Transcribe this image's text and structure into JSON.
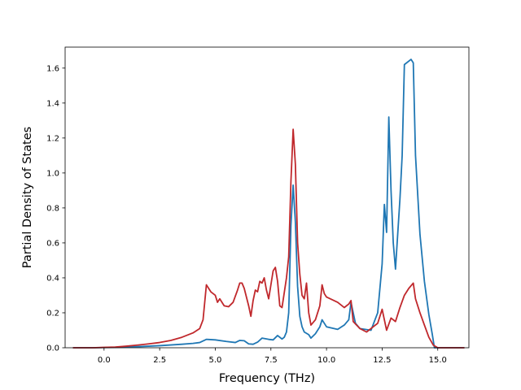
{
  "chart_data": {
    "type": "line",
    "title": "",
    "xlabel": "Frequency (THz)",
    "ylabel": "Partial Density of States",
    "xlim": [
      -1.75,
      16.4
    ],
    "ylim": [
      0,
      1.72
    ],
    "xticks": [
      0.0,
      2.5,
      5.0,
      7.5,
      10.0,
      12.5,
      15.0
    ],
    "xtick_labels": [
      "0.0",
      "2.5",
      "5.0",
      "7.5",
      "10.0",
      "12.5",
      "15.0"
    ],
    "yticks": [
      0.0,
      0.2,
      0.4,
      0.6,
      0.8,
      1.0,
      1.2,
      1.4,
      1.6
    ],
    "ytick_labels": [
      "0.0",
      "0.2",
      "0.4",
      "0.6",
      "0.8",
      "1.0",
      "1.2",
      "1.4",
      "1.6"
    ],
    "grid": false,
    "legend": "none",
    "series": [
      {
        "color": "#1f77b4",
        "points": [
          [
            -1.4,
            0.0
          ],
          [
            -0.5,
            0.0
          ],
          [
            0.0,
            0.001
          ],
          [
            0.5,
            0.002
          ],
          [
            1.0,
            0.004
          ],
          [
            1.5,
            0.006
          ],
          [
            2.0,
            0.009
          ],
          [
            2.5,
            0.012
          ],
          [
            3.0,
            0.016
          ],
          [
            3.5,
            0.02
          ],
          [
            4.0,
            0.025
          ],
          [
            4.3,
            0.03
          ],
          [
            4.6,
            0.048
          ],
          [
            5.0,
            0.045
          ],
          [
            5.5,
            0.036
          ],
          [
            5.9,
            0.03
          ],
          [
            6.1,
            0.042
          ],
          [
            6.3,
            0.04
          ],
          [
            6.5,
            0.022
          ],
          [
            6.7,
            0.02
          ],
          [
            6.9,
            0.032
          ],
          [
            7.1,
            0.055
          ],
          [
            7.4,
            0.048
          ],
          [
            7.6,
            0.045
          ],
          [
            7.8,
            0.07
          ],
          [
            8.0,
            0.05
          ],
          [
            8.1,
            0.06
          ],
          [
            8.2,
            0.09
          ],
          [
            8.3,
            0.2
          ],
          [
            8.4,
            0.7
          ],
          [
            8.5,
            0.93
          ],
          [
            8.6,
            0.72
          ],
          [
            8.7,
            0.35
          ],
          [
            8.8,
            0.18
          ],
          [
            8.9,
            0.12
          ],
          [
            9.0,
            0.09
          ],
          [
            9.2,
            0.075
          ],
          [
            9.3,
            0.055
          ],
          [
            9.5,
            0.08
          ],
          [
            9.7,
            0.12
          ],
          [
            9.8,
            0.16
          ],
          [
            10.0,
            0.12
          ],
          [
            10.5,
            0.105
          ],
          [
            10.8,
            0.13
          ],
          [
            11.0,
            0.16
          ],
          [
            11.1,
            0.26
          ],
          [
            11.3,
            0.14
          ],
          [
            11.5,
            0.11
          ],
          [
            12.0,
            0.1
          ],
          [
            12.3,
            0.2
          ],
          [
            12.5,
            0.48
          ],
          [
            12.6,
            0.82
          ],
          [
            12.7,
            0.66
          ],
          [
            12.8,
            1.32
          ],
          [
            12.9,
            0.9
          ],
          [
            13.0,
            0.6
          ],
          [
            13.1,
            0.45
          ],
          [
            13.3,
            0.85
          ],
          [
            13.4,
            1.1
          ],
          [
            13.5,
            1.62
          ],
          [
            13.8,
            1.65
          ],
          [
            13.9,
            1.63
          ],
          [
            14.0,
            1.1
          ],
          [
            14.2,
            0.65
          ],
          [
            14.4,
            0.38
          ],
          [
            14.6,
            0.19
          ],
          [
            14.75,
            0.08
          ],
          [
            14.85,
            0.0
          ],
          [
            16.2,
            0.0
          ]
        ]
      },
      {
        "color": "#c0282c",
        "points": [
          [
            -1.4,
            0.0
          ],
          [
            -0.5,
            0.0
          ],
          [
            0.0,
            0.002
          ],
          [
            0.5,
            0.004
          ],
          [
            1.0,
            0.009
          ],
          [
            1.5,
            0.015
          ],
          [
            2.0,
            0.022
          ],
          [
            2.5,
            0.03
          ],
          [
            3.0,
            0.042
          ],
          [
            3.5,
            0.06
          ],
          [
            4.0,
            0.085
          ],
          [
            4.3,
            0.11
          ],
          [
            4.45,
            0.16
          ],
          [
            4.6,
            0.36
          ],
          [
            4.8,
            0.32
          ],
          [
            5.0,
            0.3
          ],
          [
            5.1,
            0.26
          ],
          [
            5.2,
            0.28
          ],
          [
            5.4,
            0.24
          ],
          [
            5.6,
            0.235
          ],
          [
            5.8,
            0.26
          ],
          [
            6.0,
            0.33
          ],
          [
            6.1,
            0.37
          ],
          [
            6.2,
            0.37
          ],
          [
            6.3,
            0.34
          ],
          [
            6.5,
            0.24
          ],
          [
            6.6,
            0.18
          ],
          [
            6.7,
            0.27
          ],
          [
            6.8,
            0.33
          ],
          [
            6.9,
            0.32
          ],
          [
            7.0,
            0.38
          ],
          [
            7.1,
            0.37
          ],
          [
            7.2,
            0.4
          ],
          [
            7.3,
            0.33
          ],
          [
            7.4,
            0.28
          ],
          [
            7.6,
            0.44
          ],
          [
            7.7,
            0.46
          ],
          [
            7.8,
            0.38
          ],
          [
            7.9,
            0.24
          ],
          [
            8.0,
            0.23
          ],
          [
            8.2,
            0.4
          ],
          [
            8.3,
            0.52
          ],
          [
            8.4,
            0.95
          ],
          [
            8.5,
            1.25
          ],
          [
            8.6,
            1.05
          ],
          [
            8.7,
            0.6
          ],
          [
            8.8,
            0.42
          ],
          [
            8.9,
            0.3
          ],
          [
            9.0,
            0.28
          ],
          [
            9.1,
            0.37
          ],
          [
            9.2,
            0.2
          ],
          [
            9.3,
            0.13
          ],
          [
            9.5,
            0.16
          ],
          [
            9.7,
            0.24
          ],
          [
            9.8,
            0.36
          ],
          [
            9.9,
            0.31
          ],
          [
            10.0,
            0.29
          ],
          [
            10.5,
            0.26
          ],
          [
            10.8,
            0.23
          ],
          [
            11.0,
            0.25
          ],
          [
            11.1,
            0.27
          ],
          [
            11.2,
            0.15
          ],
          [
            11.5,
            0.11
          ],
          [
            11.8,
            0.09
          ],
          [
            12.0,
            0.11
          ],
          [
            12.3,
            0.14
          ],
          [
            12.5,
            0.22
          ],
          [
            12.7,
            0.1
          ],
          [
            12.9,
            0.17
          ],
          [
            13.1,
            0.15
          ],
          [
            13.3,
            0.23
          ],
          [
            13.5,
            0.3
          ],
          [
            13.7,
            0.34
          ],
          [
            13.9,
            0.37
          ],
          [
            14.0,
            0.28
          ],
          [
            14.2,
            0.2
          ],
          [
            14.4,
            0.13
          ],
          [
            14.6,
            0.06
          ],
          [
            14.8,
            0.015
          ],
          [
            15.0,
            0.0
          ],
          [
            16.2,
            0.0
          ]
        ]
      }
    ]
  }
}
